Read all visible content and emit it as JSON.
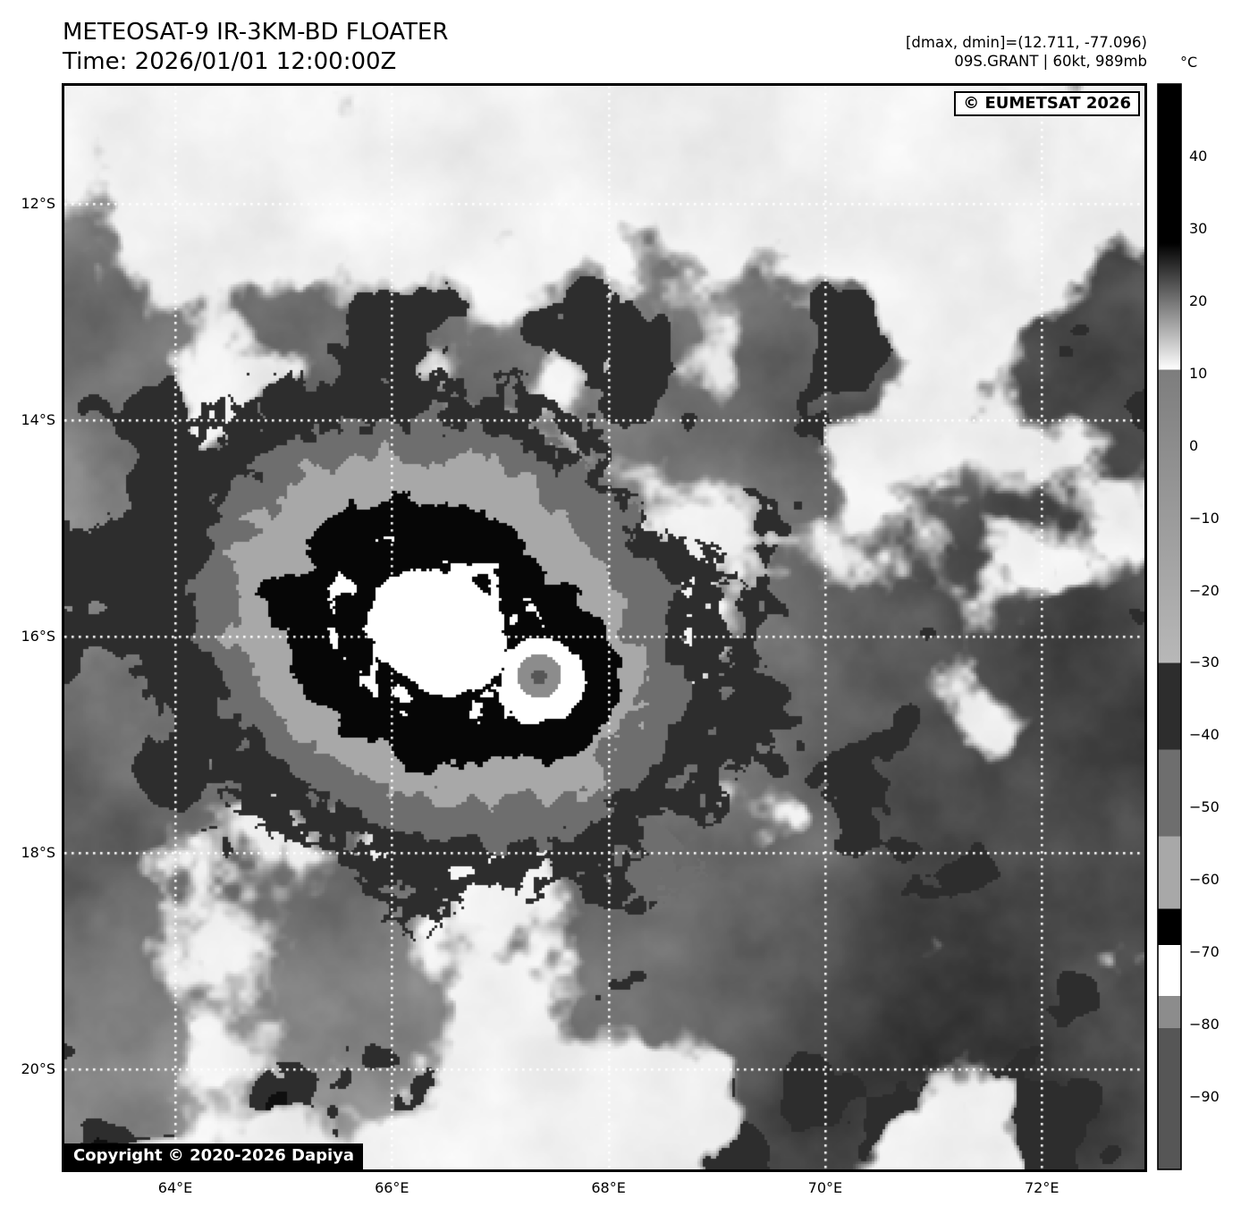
{
  "header": {
    "title": "METEOSAT-9 IR-3KM-BD FLOATER",
    "time": "Time: 2026/01/01 12:00:00Z"
  },
  "annotations": {
    "dmax_dmin": "[dmax, dmin]=(12.711, -77.096)",
    "storm_line": "09S.GRANT | 60kt, 989mb"
  },
  "map": {
    "watermark": "© EUMETSAT 2026",
    "copyright": "Copyright © 2020-2026 Dapiya",
    "lon_ticks": [
      "64°E",
      "66°E",
      "68°E",
      "70°E",
      "72°E"
    ],
    "lat_ticks": [
      "12°S",
      "14°S",
      "16°S",
      "18°S",
      "20°S"
    ],
    "grid_style": "dotted-white"
  },
  "colorbar": {
    "unit": "°C",
    "tick_values": [
      40,
      30,
      20,
      10,
      0,
      -10,
      -20,
      -30,
      -40,
      -50,
      -60,
      -70,
      -80,
      -90
    ],
    "range_top_c": 50,
    "range_bottom_c": -100,
    "bands": [
      {
        "t0": 50,
        "t1": 28,
        "c0": "#000000",
        "c1": "#000000"
      },
      {
        "t0": 28,
        "t1": 10.5,
        "c0": "#000000",
        "c1": "#ffffff"
      },
      {
        "t0": 10.5,
        "t1": -30,
        "c0": "#7d7d7d",
        "c1": "#b8b8b8"
      },
      {
        "t0": -30,
        "t1": -42,
        "c0": "#2d2d2d",
        "c1": "#2d2d2d"
      },
      {
        "t0": -42,
        "t1": -54,
        "c0": "#6e6e6e",
        "c1": "#6e6e6e"
      },
      {
        "t0": -54,
        "t1": -64,
        "c0": "#a8a8a8",
        "c1": "#a8a8a8"
      },
      {
        "t0": -64,
        "t1": -69,
        "c0": "#000000",
        "c1": "#000000"
      },
      {
        "t0": -69,
        "t1": -76,
        "c0": "#ffffff",
        "c1": "#ffffff"
      },
      {
        "t0": -76,
        "t1": -80.5,
        "c0": "#8c8c8c",
        "c1": "#8c8c8c"
      },
      {
        "t0": -80.5,
        "t1": -100,
        "c0": "#565656",
        "c1": "#565656"
      }
    ]
  },
  "chart_data": {
    "type": "heatmap",
    "title": "METEOSAT-9 IR-3KM-BD FLOATER",
    "subtitle": "Time: 2026/01/01 12:00:00Z",
    "description": "BD-enhanced infrared (IR 3km) geostationary satellite floater image of tropical cyclone 09S GRANT over the southern Indian Ocean",
    "satellite": "METEOSAT-9",
    "product": "IR-3KM-BD FLOATER",
    "time_utc": "2026/01/01 12:00:00Z",
    "dmax_c": 12.711,
    "dmin_c": -77.096,
    "storm": {
      "id": "09S.GRANT",
      "max_wind_kt": 60,
      "min_pressure_mb": 989,
      "center_approx": {
        "lon_e": 66.4,
        "lat_s": 15.9
      }
    },
    "x_axis": {
      "tick_labels": [
        "64°E",
        "66°E",
        "68°E",
        "70°E",
        "72°E"
      ],
      "tick_values_deg_e": [
        64,
        66,
        68,
        70,
        72
      ],
      "approx_range_deg_e": [
        63.0,
        73.0
      ]
    },
    "y_axis": {
      "tick_labels": [
        "12°S",
        "14°S",
        "16°S",
        "18°S",
        "20°S"
      ],
      "tick_values_deg_s": [
        12,
        14,
        16,
        18,
        20
      ],
      "approx_range_deg_s": [
        10.9,
        21.0
      ]
    },
    "colorbar_unit": "°C",
    "colorbar_range_c": [
      50,
      -100
    ],
    "legend_position": "right",
    "grid": "dotted white lat/lon lines every 2 degrees",
    "bd_enhancement_rings_outward_from_eye": [
      "white/gray overshooting tops",
      "black (-64 to -69C)",
      "light gray (-54 to -64C)",
      "medium gray (-42 to -54C)",
      "dark gray (-30 to -42C)"
    ]
  }
}
